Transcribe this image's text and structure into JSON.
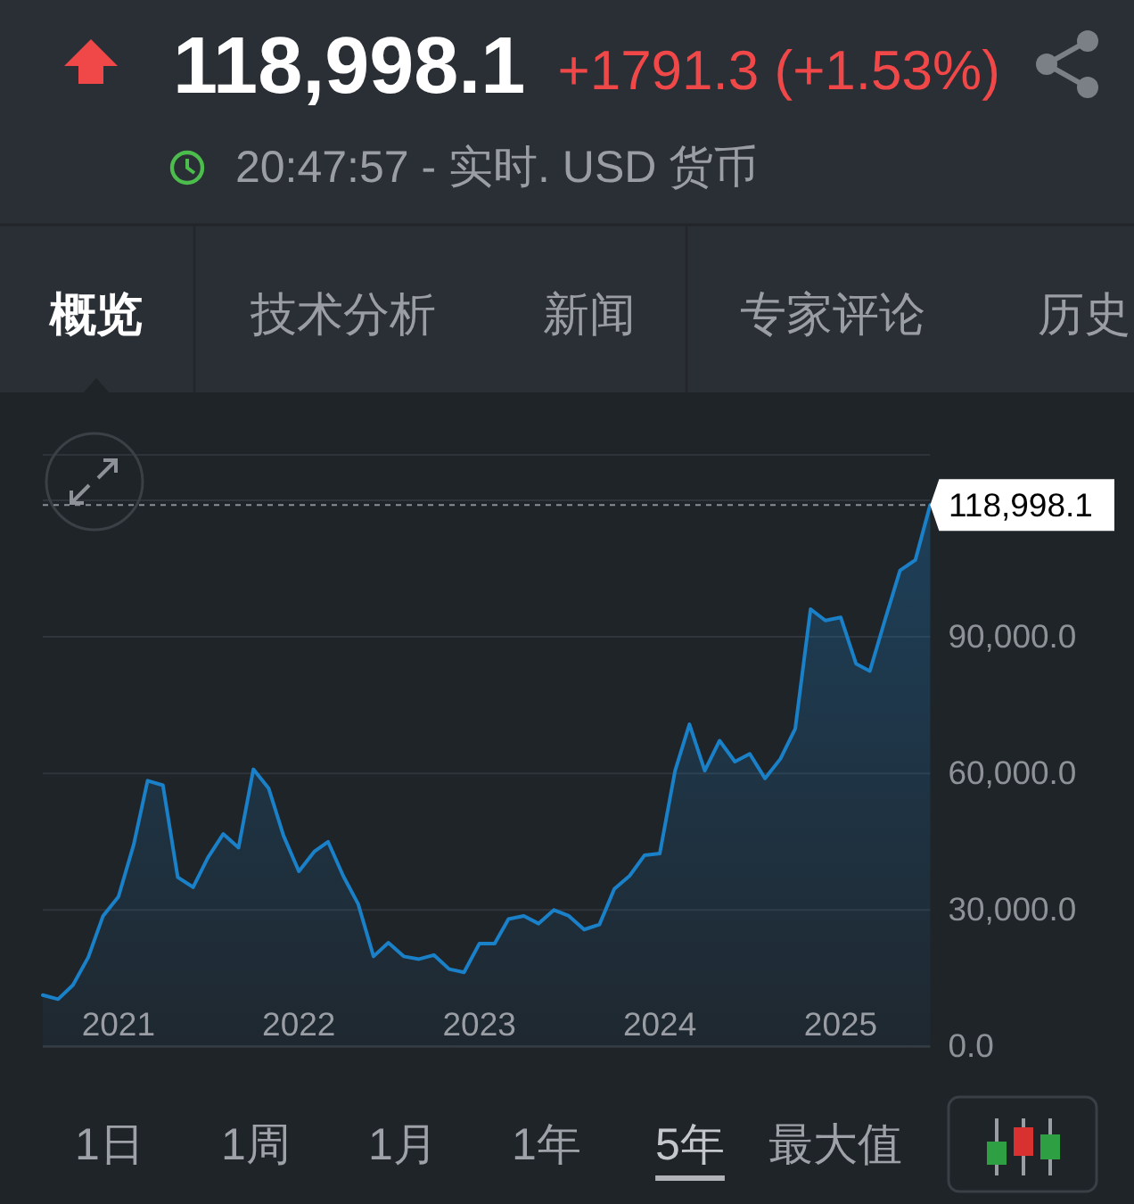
{
  "chart_data": {
    "type": "area",
    "title": "118,998.1",
    "subtitle": "+1791.3 (+1.53%)",
    "annotations": [
      "20:47:57 - 实时. USD 货币",
      "概览",
      "技术分析",
      "新闻",
      "专家评论",
      "历史",
      "1日",
      "1周",
      "1月",
      "1年",
      "5年",
      "最大值"
    ],
    "x": [
      "2020-08",
      "2020-09",
      "2020-10",
      "2020-11",
      "2020-12",
      "2021-01",
      "2021-02",
      "2021-03",
      "2021-04",
      "2021-05",
      "2021-06",
      "2021-07",
      "2021-08",
      "2021-09",
      "2021-10",
      "2021-11",
      "2021-12",
      "2022-01",
      "2022-02",
      "2022-03",
      "2022-04",
      "2022-05",
      "2022-06",
      "2022-07",
      "2022-08",
      "2022-09",
      "2022-10",
      "2022-11",
      "2022-12",
      "2023-01",
      "2023-02",
      "2023-03",
      "2023-04",
      "2023-05",
      "2023-06",
      "2023-07",
      "2023-08",
      "2023-09",
      "2023-10",
      "2023-11",
      "2023-12",
      "2024-01",
      "2024-02",
      "2024-03",
      "2024-04",
      "2024-05",
      "2024-06",
      "2024-07",
      "2024-08",
      "2024-09",
      "2024-10",
      "2024-11",
      "2024-12",
      "2025-01",
      "2025-02",
      "2025-03",
      "2025-04",
      "2025-05",
      "2025-06",
      "2025-07"
    ],
    "values": [
      11300,
      10400,
      13500,
      19600,
      28700,
      32900,
      44400,
      58400,
      57400,
      37200,
      35000,
      41500,
      46700,
      43700,
      60900,
      56700,
      46300,
      38500,
      42800,
      45000,
      37400,
      31300,
      19800,
      22800,
      19800,
      19200,
      20100,
      17000,
      16300,
      22600,
      22600,
      28000,
      28700,
      27000,
      30000,
      28700,
      25700,
      26800,
      34600,
      37500,
      42000,
      42400,
      60600,
      70800,
      60600,
      67200,
      62600,
      64300,
      58900,
      63200,
      69800,
      96100,
      93600,
      94300,
      84100,
      82500,
      93900,
      104600,
      106900,
      118998.1
    ],
    "color": "#1a80c8",
    "xlim": [
      "2020-08",
      "2025-07"
    ],
    "xticks": [
      "2021",
      "2022",
      "2023",
      "2024",
      "2025"
    ],
    "ylim": [
      0,
      130000
    ],
    "yticks": [
      {
        "value": 0,
        "label": "0.0"
      },
      {
        "value": 30000,
        "label": "30,000.0"
      },
      {
        "value": 60000,
        "label": "60,000.0"
      },
      {
        "value": 90000,
        "label": "90,000.0"
      },
      {
        "value": 120000,
        "label": null
      }
    ],
    "grid": "y",
    "ref_lines": [
      {
        "axis": "y",
        "value": 118998.1,
        "label": "118,998.1",
        "color": "#8a8f96",
        "line_style": "dashed"
      }
    ]
  }
}
